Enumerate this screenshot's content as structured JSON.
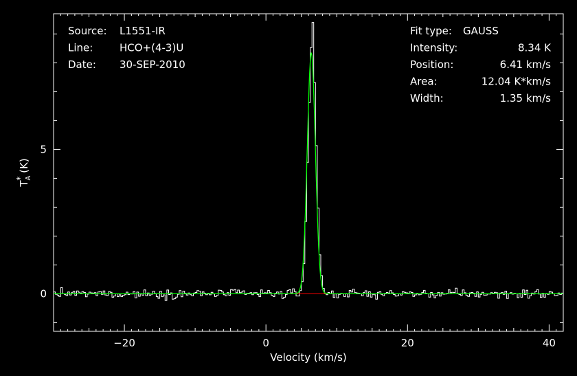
{
  "header_left": [
    {
      "key": "Source:",
      "value": "L1551-IR"
    },
    {
      "key": "Line:",
      "value": "HCO+(4-3)U"
    },
    {
      "key": "Date:",
      "value": "30-SEP-2010"
    }
  ],
  "header_right": [
    {
      "key": "Fit type:",
      "value": "GAUSS"
    },
    {
      "key": "Intensity:",
      "value": "8.34 K"
    },
    {
      "key": "Position:",
      "value": "6.41 km/s"
    },
    {
      "key": "Area:",
      "value": "12.04 K*km/s"
    },
    {
      "key": "Width:",
      "value": "1.35 km/s"
    }
  ],
  "chart_data": {
    "type": "line",
    "xlabel": "Velocity (km/s)",
    "ylabel": "T_A* (K)",
    "xlim": [
      -30,
      42
    ],
    "ylim": [
      -1.3,
      9.7
    ],
    "x_ticks": [
      -20,
      0,
      20,
      40
    ],
    "y_ticks": [
      0,
      5
    ],
    "grid": false,
    "series": [
      {
        "role": "observed spectrum",
        "style": "step",
        "color": "#ffffff",
        "x_start": -30,
        "x_step": 0.25,
        "noise_rms": 0.15,
        "peak": {
          "x": 6.4,
          "y": 9.4
        }
      },
      {
        "role": "gaussian fit",
        "color": "#00ff00",
        "amplitude": 8.34,
        "center": 6.41,
        "fwhm": 1.35
      },
      {
        "role": "residual baseline",
        "color": "#ff0000",
        "x_range": [
          3.2,
          9.8
        ],
        "y": 0
      }
    ]
  }
}
